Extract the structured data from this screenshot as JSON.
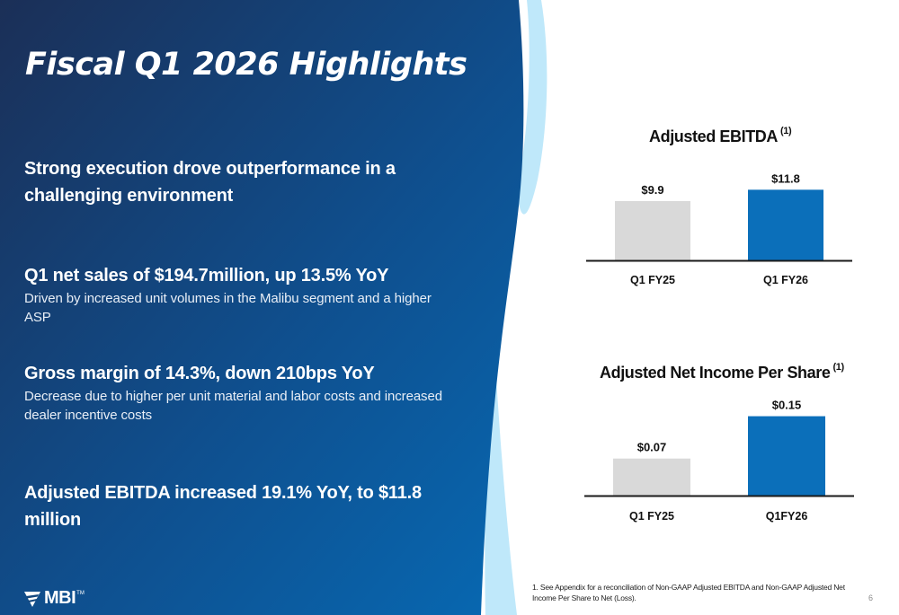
{
  "slide": {
    "title": "Fiscal Q1 2026 Highlights",
    "page_number": "6",
    "logo": {
      "icon": "mbi-chevron-logo-icon",
      "text": "MBI",
      "tm": "TM"
    },
    "colors": {
      "bg_dark": "#1b3560",
      "bg_light": "#0a6ab0",
      "accent_light": "#bfe8fa",
      "bar_prior": "#d9d9d9",
      "bar_current": "#0b6fba"
    }
  },
  "highlights": [
    {
      "heading": "Strong execution drove outperformance in a challenging environment",
      "detail": ""
    },
    {
      "heading": "Q1 net sales of $194.7million, up 13.5% YoY",
      "detail": "Driven by increased unit volumes in the Malibu segment and a higher ASP"
    },
    {
      "heading": "Gross margin of 14.3%, down 210bps YoY",
      "detail": "Decrease due to higher per unit material and labor costs and increased dealer incentive costs"
    },
    {
      "heading": "Adjusted EBITDA increased 19.1% YoY, to $11.8 million",
      "detail": ""
    }
  ],
  "footnote": "1. See Appendix for a reconciliation of Non-GAAP Adjusted EBITDA and Non-GAAP Adjusted Net Income Per Share to Net (Loss).",
  "chart_data": [
    {
      "type": "bar",
      "title": "Adjusted EBITDA",
      "title_note": "(1)",
      "categories": [
        "Q1 FY25",
        "Q1 FY26"
      ],
      "values": [
        9.9,
        11.8
      ],
      "value_labels": [
        "$9.9",
        "$11.8"
      ],
      "xlabel": "",
      "ylabel": "",
      "ylim": [
        0,
        15
      ],
      "grid": false,
      "legend": "none"
    },
    {
      "type": "bar",
      "title": "Adjusted Net Income Per Share",
      "title_note": "(1)",
      "categories": [
        "Q1 FY25",
        "Q1FY26"
      ],
      "values": [
        0.07,
        0.15
      ],
      "value_labels": [
        "$0.07",
        "$0.15"
      ],
      "xlabel": "",
      "ylabel": "",
      "ylim": [
        0,
        0.19
      ],
      "grid": false,
      "legend": "none"
    }
  ]
}
